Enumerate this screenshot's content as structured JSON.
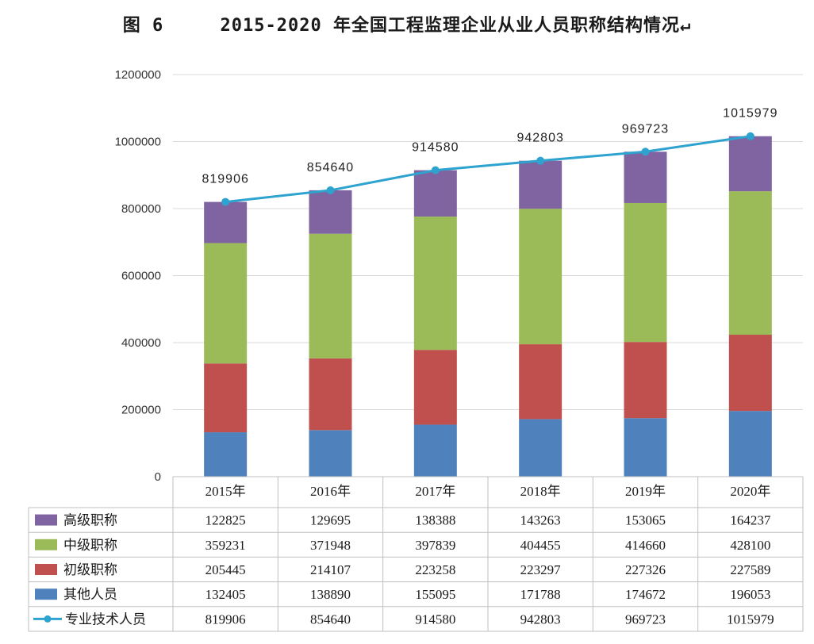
{
  "title": "图 6     2015-2020 年全国工程监理企业从业人员职称结构情况↵",
  "colors": {
    "senior": "#8064a2",
    "middle": "#9bbb59",
    "junior": "#c0504d",
    "other": "#4f81bd",
    "total": "#2ea3cf",
    "grid": "#d9d9d9",
    "axis": "#bfbfbf"
  },
  "chart_data": {
    "type": "bar",
    "stacked": true,
    "title": "2015-2020 年全国工程监理企业从业人员职称结构情况",
    "categories": [
      "2015年",
      "2016年",
      "2017年",
      "2018年",
      "2019年",
      "2020年"
    ],
    "ylim": [
      0,
      1200000
    ],
    "yticks": [
      0,
      200000,
      400000,
      600000,
      800000,
      1000000,
      1200000
    ],
    "ytick_labels": [
      "0",
      "200000",
      "400000",
      "600000",
      "800000",
      "1000000",
      "1200000"
    ],
    "grid": true,
    "series": [
      {
        "name": "高级职称",
        "key": "senior",
        "kind": "bar",
        "values": [
          122825,
          129695,
          138388,
          143263,
          153065,
          164237
        ],
        "labels": [
          "122825",
          "129695",
          "138388",
          "143263",
          "153065",
          "164237"
        ]
      },
      {
        "name": "中级职称",
        "key": "middle",
        "kind": "bar",
        "values": [
          359231,
          371948,
          397839,
          404455,
          414660,
          428100
        ],
        "labels": [
          "359231",
          "371948",
          "397839",
          "404455",
          "414660",
          "428100"
        ]
      },
      {
        "name": "初级职称",
        "key": "junior",
        "kind": "bar",
        "values": [
          205445,
          214107,
          223258,
          223297,
          227326,
          227589
        ],
        "labels": [
          "205445",
          "214107",
          "223258",
          "223297",
          "227326",
          "227589"
        ]
      },
      {
        "name": "其他人员",
        "key": "other",
        "kind": "bar",
        "values": [
          132405,
          138890,
          155095,
          171788,
          174672,
          196053
        ],
        "labels": [
          "132405",
          "138890",
          "155095",
          "171788",
          "174672",
          "196053"
        ]
      },
      {
        "name": "专业技术人员",
        "key": "total",
        "kind": "line",
        "values": [
          819906,
          854640,
          914580,
          942803,
          969723,
          1015979
        ],
        "labels": [
          "819906",
          "854640",
          "914580",
          "942803",
          "969723",
          "1015979"
        ]
      }
    ],
    "legend": "data-table"
  }
}
